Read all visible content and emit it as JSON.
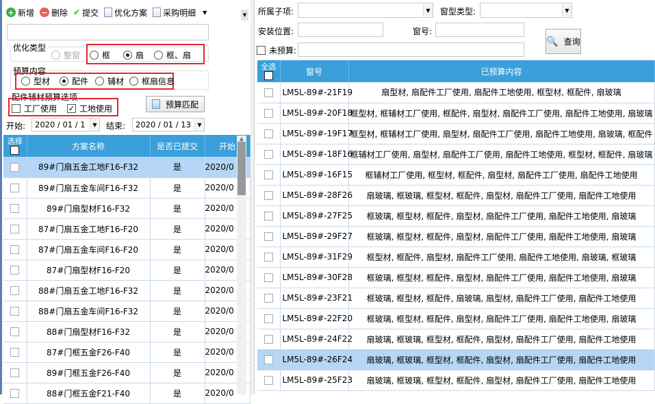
{
  "toolbar": {
    "add": "新增",
    "delete": "删除",
    "submit": "提交",
    "plan": "优化方案",
    "purchase": "采购明细"
  },
  "opt_type": {
    "title": "优化类型",
    "options": [
      "整窗",
      "框",
      "扇",
      "框、扇"
    ],
    "selected": "扇"
  },
  "budget_content": {
    "title": "预算内容",
    "options": [
      "型材",
      "配件",
      "辅材",
      "框扇信息"
    ],
    "selected": "配件"
  },
  "budget_options": {
    "title": "配件辅材预算选项",
    "factory": "工厂使用",
    "factory_checked": false,
    "site": "工地使用",
    "site_checked": true,
    "match_button": "预算匹配"
  },
  "dates": {
    "start_label": "开始:",
    "start_value": "2020 / 01 / 1",
    "end_label": "结束:",
    "end_value": "2020 / 01 / 13"
  },
  "left_table": {
    "headers": [
      "选择",
      "方案名称",
      "是否已提交",
      "开始"
    ],
    "rows": [
      {
        "name": "89#门扇五金工地F16-F32",
        "submitted": "是",
        "start": "2020/0",
        "selected": true
      },
      {
        "name": "89#门扇五金车间F16-F32",
        "submitted": "是",
        "start": "2020/0"
      },
      {
        "name": "89#门扇型材F16-F32",
        "submitted": "是",
        "start": "2020/0"
      },
      {
        "name": "87#门扇五金工地F16-F20",
        "submitted": "是",
        "start": "2020/0"
      },
      {
        "name": "87#门扇五金车间F16-F20",
        "submitted": "是",
        "start": "2020/0"
      },
      {
        "name": "87#门扇型材F16-F20",
        "submitted": "是",
        "start": "2020/0"
      },
      {
        "name": "88#门扇五金工地F16-F32",
        "submitted": "是",
        "start": "2020/0"
      },
      {
        "name": "88#门扇五金车间F16-F32",
        "submitted": "是",
        "start": "2020/0"
      },
      {
        "name": "88#门扇型材F16-F32",
        "submitted": "是",
        "start": "2020/0"
      },
      {
        "name": "87#门框五金F26-F40",
        "submitted": "是",
        "start": "2020/0"
      },
      {
        "name": "89#门框五金F26-F40",
        "submitted": "是",
        "start": "2020/0"
      },
      {
        "name": "88#门框五金F21-F40",
        "submitted": "是",
        "start": "2020/0"
      }
    ]
  },
  "filters": {
    "subitem_label": "所属子项:",
    "window_type_label": "窗型类型:",
    "location_label": "安装位置:",
    "window_no_label": "窗号:",
    "unbudgeted_label": "未预算:",
    "query_button": "查询"
  },
  "right_table": {
    "headers": [
      "全选",
      "窗号",
      "已预算内容"
    ],
    "rows": [
      {
        "no": "LM5L-89#-21F19",
        "content": "扇型材, 扇配件工厂使用, 扇配件工地使用, 框型材, 框配件, 扇玻璃"
      },
      {
        "no": "LM5L-89#-20F18",
        "content": "框型材, 框辅材工厂使用, 框配件, 扇型材, 扇配件工厂使用, 扇配件工地使用, 扇玻璃"
      },
      {
        "no": "LM5L-89#-19F17",
        "content": "框型材, 框辅材工厂使用, 扇型材, 扇配件工厂使用, 扇配件工地使用, 扇玻璃, 框配件"
      },
      {
        "no": "LM5L-89#-18F16",
        "content": "框辅材工厂使用, 扇型材, 扇配件工厂使用, 扇配件工地使用, 框型材, 框配件, 扇玻璃"
      },
      {
        "no": "LM5L-89#-16F15",
        "content": "框辅材工厂使用, 框型材, 框配件, 扇型材, 扇配件工厂使用, 扇配件工地使用"
      },
      {
        "no": "LM5L-89#-28F26",
        "content": "扇玻璃, 框玻璃, 框型材, 框配件, 扇型材, 扇配件工厂使用, 扇配件工地使用"
      },
      {
        "no": "LM5L-89#-27F25",
        "content": "框玻璃, 框型材, 框配件, 扇型材, 扇配件工厂使用, 扇配件工地使用, 扇玻璃"
      },
      {
        "no": "LM5L-89#-29F27",
        "content": "框玻璃, 框型材, 框配件, 扇型材, 扇配件工厂使用, 扇配件工地使用, 扇玻璃"
      },
      {
        "no": "LM5L-89#-31F29",
        "content": "框型材, 框配件, 扇型材, 扇配件工厂使用, 扇配件工地使用, 扇玻璃, 框玻璃"
      },
      {
        "no": "LM5L-89#-30F28",
        "content": "框玻璃, 框型材, 框配件, 扇型材, 扇配件工厂使用, 扇配件工地使用, 扇玻璃"
      },
      {
        "no": "LM5L-89#-23F21",
        "content": "框玻璃, 框型材, 框配件, 扇玻璃, 扇型材, 扇配件工厂使用, 扇配件工地使用"
      },
      {
        "no": "LM5L-89#-22F20",
        "content": "框玻璃, 框型材, 框配件, 扇型材, 扇配件工厂使用, 扇配件工地使用, 扇玻璃"
      },
      {
        "no": "LM5L-89#-24F22",
        "content": "扇玻璃, 框玻璃, 框型材, 框配件, 扇型材, 扇配件工厂使用, 扇配件工地使用"
      },
      {
        "no": "LM5L-89#-26F24",
        "content": "扇玻璃, 框玻璃, 框型材, 框配件, 扇型材, 扇配件工厂使用, 扇配件工地使用",
        "selected": true
      },
      {
        "no": "LM5L-89#-25F23",
        "content": "扇玻璃, 框玻璃, 框型材, 框配件, 扇型材, 扇配件工厂使用, 扇配件工地使用"
      }
    ]
  },
  "colors": {
    "header": "#3a9fdb",
    "selected_row": "#b5d6f6",
    "highlight_box": "#e0262b"
  }
}
